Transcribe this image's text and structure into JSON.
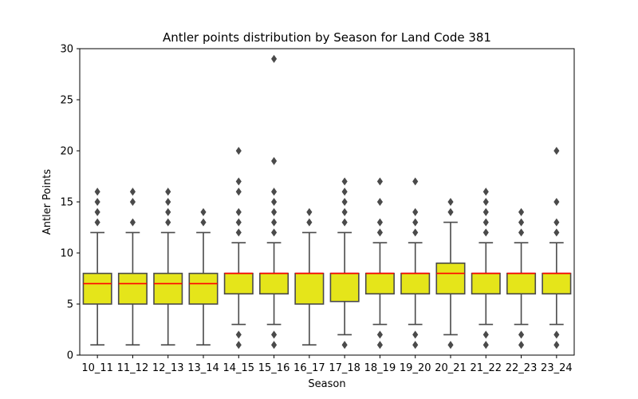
{
  "chart_data": {
    "type": "box",
    "title": "Antler points distribution by Season for Land Code 381",
    "xlabel": "Season",
    "ylabel": "Antler Points",
    "ylim": [
      0,
      30
    ],
    "yticks": [
      0,
      5,
      10,
      15,
      20,
      25,
      30
    ],
    "grid": false,
    "colors": {
      "box": "#e5e51a",
      "median": "#ff0000",
      "line": "#4a4a4a"
    },
    "categories": [
      "10_11",
      "11_12",
      "12_13",
      "13_14",
      "14_15",
      "15_16",
      "16_17",
      "17_18",
      "18_19",
      "19_20",
      "20_21",
      "21_22",
      "22_23",
      "23_24"
    ],
    "boxes": [
      {
        "season": "10_11",
        "min": 1,
        "q1": 5,
        "median": 7,
        "q3": 8,
        "max": 12,
        "outliers": [
          13,
          14,
          15,
          16
        ]
      },
      {
        "season": "11_12",
        "min": 1,
        "q1": 5,
        "median": 7,
        "q3": 8,
        "max": 12,
        "outliers": [
          13,
          15,
          16
        ]
      },
      {
        "season": "12_13",
        "min": 1,
        "q1": 5,
        "median": 7,
        "q3": 8,
        "max": 12,
        "outliers": [
          13,
          14,
          15,
          16
        ]
      },
      {
        "season": "13_14",
        "min": 1,
        "q1": 5,
        "median": 7,
        "q3": 8,
        "max": 12,
        "outliers": [
          13,
          14
        ]
      },
      {
        "season": "14_15",
        "min": 3,
        "q1": 6,
        "median": 8,
        "q3": 8,
        "max": 11,
        "outliers": [
          1,
          2,
          12,
          13,
          14,
          16,
          17,
          20
        ]
      },
      {
        "season": "15_16",
        "min": 3,
        "q1": 6,
        "median": 8,
        "q3": 8,
        "max": 11,
        "outliers": [
          1,
          2,
          12,
          13,
          14,
          15,
          16,
          19,
          29
        ]
      },
      {
        "season": "16_17",
        "min": 1,
        "q1": 5,
        "median": 8,
        "q3": 8,
        "max": 12,
        "outliers": [
          13,
          14
        ]
      },
      {
        "season": "17_18",
        "min": 2,
        "q1": 5.25,
        "median": 8,
        "q3": 8,
        "max": 12,
        "outliers": [
          1,
          13,
          14,
          15,
          16,
          17
        ]
      },
      {
        "season": "18_19",
        "min": 3,
        "q1": 6,
        "median": 8,
        "q3": 8,
        "max": 11,
        "outliers": [
          1,
          2,
          12,
          13,
          15,
          17
        ]
      },
      {
        "season": "19_20",
        "min": 3,
        "q1": 6,
        "median": 8,
        "q3": 8,
        "max": 11,
        "outliers": [
          1,
          2,
          12,
          13,
          14,
          17
        ]
      },
      {
        "season": "20_21",
        "min": 2,
        "q1": 6,
        "median": 8,
        "q3": 9,
        "max": 13,
        "outliers": [
          1,
          14,
          15
        ]
      },
      {
        "season": "21_22",
        "min": 3,
        "q1": 6,
        "median": 8,
        "q3": 8,
        "max": 11,
        "outliers": [
          1,
          2,
          12,
          13,
          14,
          15,
          16
        ]
      },
      {
        "season": "22_23",
        "min": 3,
        "q1": 6,
        "median": 8,
        "q3": 8,
        "max": 11,
        "outliers": [
          1,
          2,
          12,
          13,
          14
        ]
      },
      {
        "season": "23_24",
        "min": 3,
        "q1": 6,
        "median": 8,
        "q3": 8,
        "max": 11,
        "outliers": [
          1,
          2,
          12,
          13,
          15,
          20
        ]
      }
    ]
  }
}
